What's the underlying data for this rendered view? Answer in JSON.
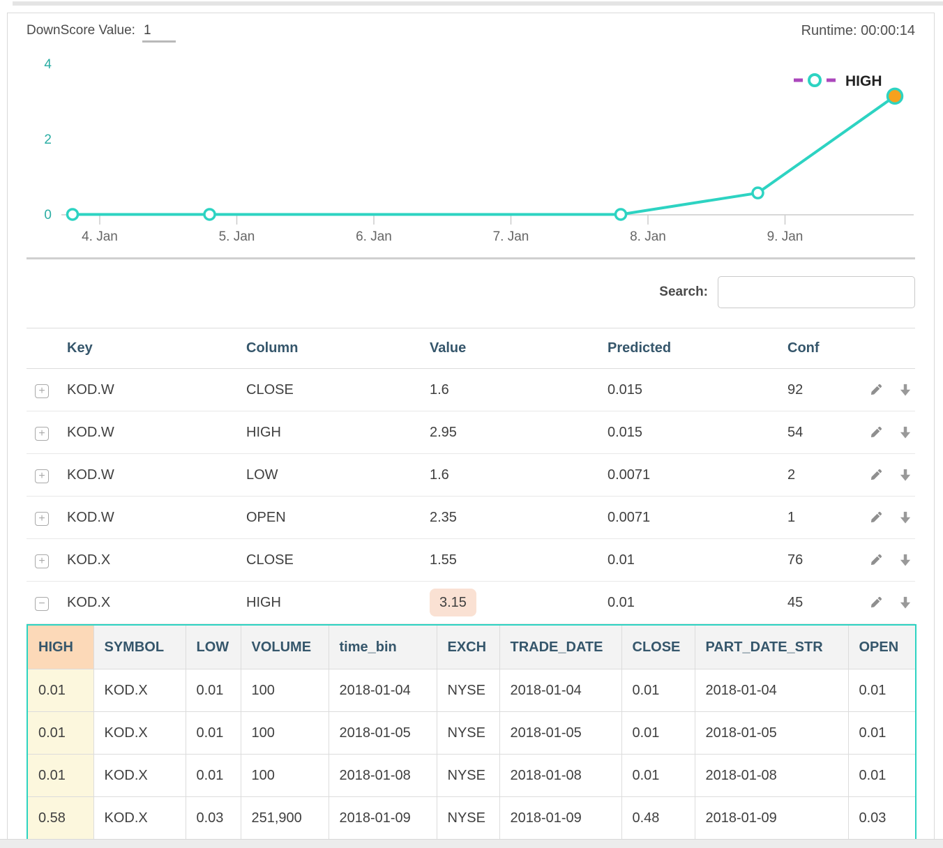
{
  "header": {
    "downscore_label": "DownScore Value:",
    "downscore_value": "1",
    "runtime_label": "Runtime: 00:00:14"
  },
  "chart_data": {
    "type": "line",
    "series": [
      {
        "name": "HIGH",
        "x": [
          "2018-01-04",
          "2018-01-05",
          "2018-01-08",
          "2018-01-09",
          "2018-01-10"
        ],
        "values": [
          0.01,
          0.01,
          0.01,
          0.58,
          3.15
        ]
      }
    ],
    "xticklabels": [
      "4. Jan",
      "5. Jan",
      "6. Jan",
      "7. Jan",
      "8. Jan",
      "9. Jan"
    ],
    "yticks": [
      0,
      2,
      4
    ],
    "ylim": [
      0,
      4
    ],
    "grid": false,
    "legend": "HIGH",
    "legend_position": "top-right",
    "line_color": "#2dd3c2",
    "marker_fill": "#ffffff",
    "last_point_color": "#f7a11d",
    "legend_dash_color": "#ab47bc",
    "axis_color": "#cccccc"
  },
  "search": {
    "label": "Search:",
    "value": ""
  },
  "main_table": {
    "columns": [
      "Key",
      "Column",
      "Value",
      "Predicted",
      "Conf"
    ],
    "rows": [
      {
        "expanded": false,
        "highlight": false,
        "key": "KOD.W",
        "column": "CLOSE",
        "value": "1.6",
        "predicted": "0.015",
        "conf": "92"
      },
      {
        "expanded": false,
        "highlight": false,
        "key": "KOD.W",
        "column": "HIGH",
        "value": "2.95",
        "predicted": "0.015",
        "conf": "54"
      },
      {
        "expanded": false,
        "highlight": false,
        "key": "KOD.W",
        "column": "LOW",
        "value": "1.6",
        "predicted": "0.0071",
        "conf": "2"
      },
      {
        "expanded": false,
        "highlight": false,
        "key": "KOD.W",
        "column": "OPEN",
        "value": "2.35",
        "predicted": "0.0071",
        "conf": "1"
      },
      {
        "expanded": false,
        "highlight": false,
        "key": "KOD.X",
        "column": "CLOSE",
        "value": "1.55",
        "predicted": "0.01",
        "conf": "76"
      },
      {
        "expanded": true,
        "highlight": true,
        "key": "KOD.X",
        "column": "HIGH",
        "value": "3.15",
        "predicted": "0.01",
        "conf": "45"
      }
    ]
  },
  "detail_table": {
    "columns": [
      "HIGH",
      "SYMBOL",
      "LOW",
      "VOLUME",
      "time_bin",
      "EXCH",
      "TRADE_DATE",
      "CLOSE",
      "PART_DATE_STR",
      "OPEN"
    ],
    "rows": [
      [
        "0.01",
        "KOD.X",
        "0.01",
        "100",
        "2018-01-04",
        "NYSE",
        "2018-01-04",
        "0.01",
        "2018-01-04",
        "0.01"
      ],
      [
        "0.01",
        "KOD.X",
        "0.01",
        "100",
        "2018-01-05",
        "NYSE",
        "2018-01-05",
        "0.01",
        "2018-01-05",
        "0.01"
      ],
      [
        "0.01",
        "KOD.X",
        "0.01",
        "100",
        "2018-01-08",
        "NYSE",
        "2018-01-08",
        "0.01",
        "2018-01-08",
        "0.01"
      ],
      [
        "0.58",
        "KOD.X",
        "0.03",
        "251,900",
        "2018-01-09",
        "NYSE",
        "2018-01-09",
        "0.48",
        "2018-01-09",
        "0.03"
      ]
    ]
  },
  "icons": {
    "expand_collapsed": "+",
    "expand_expanded": "−",
    "edit": "pencil-icon",
    "download": "arrow-down-icon"
  },
  "colors": {
    "accent_teal": "#2dd3c2",
    "accent_orange": "#f7a11d",
    "header_navy": "#35566b",
    "value_highlight_bg": "#fae1d3",
    "detail_header_highlight_bg": "#fcd9b8",
    "detail_column_highlight_bg": "#fcf7dd"
  }
}
